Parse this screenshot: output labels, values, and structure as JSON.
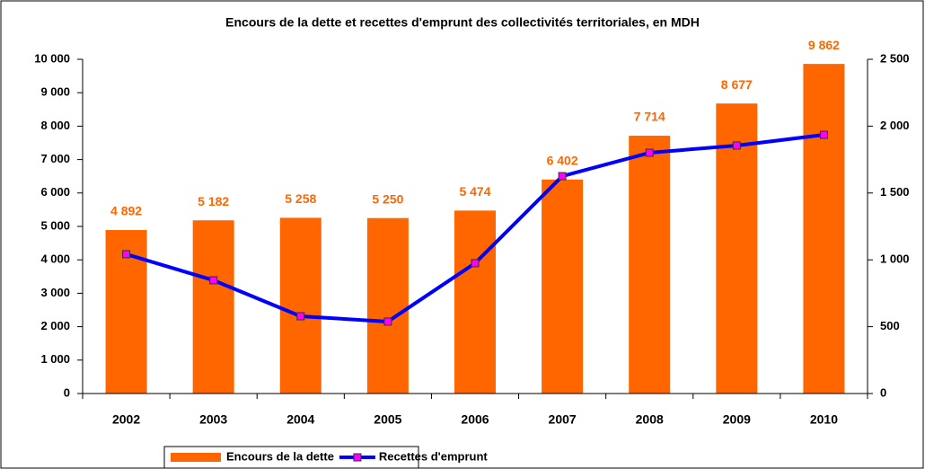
{
  "chart_data": {
    "type": "bar_line",
    "title": "Encours de la dette et recettes d'emprunt des collectivités territoriales, en MDH",
    "categories": [
      "2002",
      "2003",
      "2004",
      "2005",
      "2006",
      "2007",
      "2008",
      "2009",
      "2010"
    ],
    "series": [
      {
        "name": "Encours de la dette",
        "type": "bar",
        "color": "#ff6600",
        "values": [
          4892,
          5182,
          5258,
          5250,
          5474,
          6402,
          7714,
          8677,
          9862
        ],
        "value_labels": [
          "4 892",
          "5 182",
          "5 258",
          "5 250",
          "5 474",
          "6 402",
          "7 714",
          "8 677",
          "9 862"
        ]
      },
      {
        "name": "Recettes d'emprunt",
        "type": "line",
        "axis": "y2",
        "color": "#0000ff",
        "marker_color": "#ff00ff",
        "values": [
          1042,
          847,
          578,
          538,
          975,
          1626,
          1801,
          1855,
          1935
        ]
      }
    ],
    "ylim": [
      0,
      10000
    ],
    "yticks": [
      0,
      {
        "value": 1000,
        "label": "1 000"
      },
      {
        "value": 2000,
        "label": "2 000"
      },
      {
        "value": 3000,
        "label": "3 000"
      },
      {
        "value": 4000,
        "label": "4 000"
      },
      {
        "value": 5000,
        "label": "5 000"
      },
      {
        "value": 6000,
        "label": "6 000"
      },
      {
        "value": 7000,
        "label": "7 000"
      },
      {
        "value": 8000,
        "label": "8 000"
      },
      {
        "value": 9000,
        "label": "9 000"
      },
      {
        "value": 10000,
        "label": "10 000"
      }
    ],
    "y2lim": [
      0,
      2500
    ],
    "y2ticks": [
      0,
      500,
      {
        "value": 1000,
        "label": "1 000"
      },
      {
        "value": 1500,
        "label": "1 500"
      },
      {
        "value": 2000,
        "label": "2 000"
      },
      {
        "value": 2500,
        "label": "2 500"
      }
    ],
    "legend": "bottom"
  }
}
